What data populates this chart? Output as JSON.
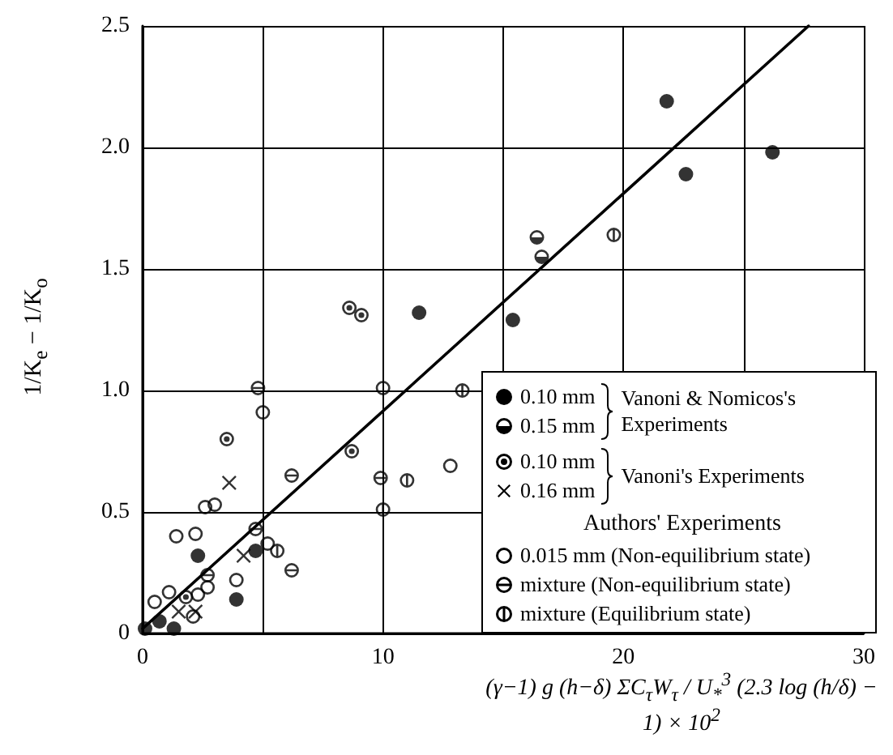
{
  "chart_data": {
    "type": "scatter",
    "xlabel": "(γ−1) g (h−δ) ΣC$_{τ}$W$_{τ}$ / U$_{*}$$^{3}$ (2.3 log (h/δ) − 1) × 10$^{2}$",
    "ylabel": "1/K$_{e}$ − 1/K$_{o}$",
    "xlim": [
      0,
      30
    ],
    "ylim": [
      0,
      2.5
    ],
    "xticks": [
      0,
      {
        "value": 5,
        "label": null
      },
      10,
      {
        "value": 15,
        "label": null
      },
      20,
      {
        "value": 25,
        "label": null
      },
      30
    ],
    "yticks": [
      0,
      0.5,
      {
        "value": 1,
        "label": "1.0"
      },
      1.5,
      {
        "value": 2,
        "label": "2.0"
      },
      2.5
    ],
    "grid": true,
    "legend": "bottom right",
    "annotations": [
      "Vanoni & Nomicos's Experiments",
      "Vanoni's Experiments",
      "Authors' Experiments"
    ],
    "series": [
      {
        "name": "0.10 mm",
        "color": "#000000",
        "marker": "circle",
        "x": [
          0.1,
          0.7,
          1.3,
          2.3,
          4.7,
          3.9,
          11.5,
          15.4,
          21.8,
          22.6,
          26.2
        ],
        "values": [
          0.02,
          0.05,
          0.02,
          0.32,
          0.34,
          0.14,
          1.32,
          1.29,
          2.19,
          1.89,
          1.98
        ]
      },
      {
        "name": "0.15 mm",
        "color": "#000000",
        "marker": "circle",
        "x": [
          16.4,
          16.6
        ],
        "values": [
          1.63,
          1.55
        ]
      },
      {
        "name": "0.10 mm",
        "color": "#000000",
        "marker": "circle",
        "x": [
          3.5,
          8.7,
          1.8,
          8.6,
          9.1
        ],
        "values": [
          0.8,
          0.75,
          0.15,
          1.34,
          1.31
        ]
      },
      {
        "name": "0.16 mm",
        "color": "#000000",
        "marker": "cross",
        "x": [
          3.6,
          4.2,
          1.5,
          2.2
        ],
        "values": [
          0.62,
          0.32,
          0.09,
          0.09
        ]
      },
      {
        "name": "0.015 mm (Non-equilibrium state)",
        "color": "#000000",
        "marker": "circle",
        "x": [
          10.0,
          5.0,
          12.8,
          2.6,
          3.0,
          1.4,
          2.2,
          5.2,
          2.7,
          3.9,
          2.3,
          1.1,
          0.5,
          2.1
        ],
        "values": [
          1.01,
          0.91,
          0.69,
          0.52,
          0.53,
          0.4,
          0.41,
          0.37,
          0.19,
          0.22,
          0.16,
          0.17,
          0.13,
          0.07
        ]
      },
      {
        "name": "mixture (Non-equilibrium state)",
        "color": "#000000",
        "marker": "circle",
        "x": [
          4.8,
          6.2,
          9.9,
          6.2,
          2.7,
          4.7
        ],
        "values": [
          1.01,
          0.65,
          0.64,
          0.26,
          0.24,
          0.43
        ]
      },
      {
        "name": "mixture (Equilibrium state)",
        "color": "#000000",
        "marker": "circle",
        "x": [
          13.3,
          11.0,
          10.0,
          5.6,
          19.6
        ],
        "values": [
          1.0,
          0.63,
          0.51,
          0.34,
          1.64
        ]
      },
      {
        "type": "line",
        "color": "#000000",
        "marker": "none",
        "line_style": "solid",
        "x": [
          0,
          27.7
        ],
        "values": [
          0.02,
          2.5
        ]
      }
    ]
  }
}
